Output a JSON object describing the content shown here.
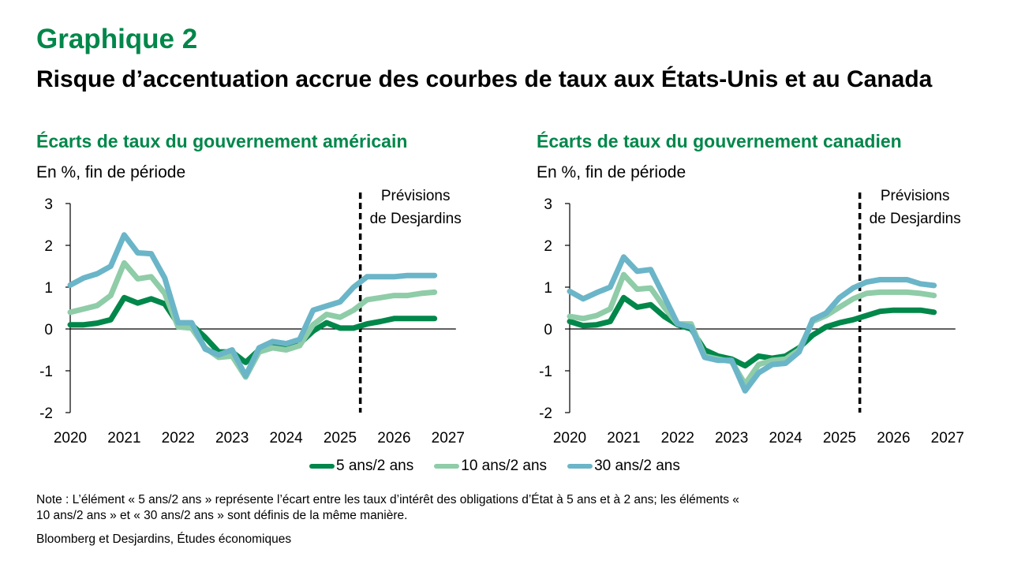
{
  "header": {
    "graph_label": "Graphique 2",
    "title": "Risque d’accentuation accrue des courbes de taux aux États-Unis et au Canada"
  },
  "legend": [
    {
      "label": "5 ans/2 ans",
      "color": "#00874A"
    },
    {
      "label": "10 ans/2 ans",
      "color": "#8FCCA8"
    },
    {
      "label": "30 ans/2 ans",
      "color": "#6BB5C8"
    }
  ],
  "footer": {
    "note": "Note : L’élément « 5 ans/2 ans » représente l’écart entre les taux d’intérêt des obligations d’État à 5 ans et à 2 ans; les éléments « 10 ans/2 ans » et « 30 ans/2 ans » sont définis de la même manière.",
    "source": "Bloomberg et Desjardins, Études économiques"
  },
  "chart_data": [
    {
      "type": "line",
      "title": "Écarts de taux du gouvernement américain",
      "ylabel": "En %, fin de période",
      "xlabel": "",
      "ylim": [
        -2,
        3
      ],
      "yticks": [
        "3",
        "2",
        "1",
        "0",
        "-1",
        "-2"
      ],
      "ytick_values": [
        3,
        2,
        1,
        0,
        -1,
        -2
      ],
      "xticks": [
        "2020",
        "2021",
        "2022",
        "2023",
        "2024",
        "2025",
        "2026",
        "2027"
      ],
      "xlim": [
        2020,
        2027
      ],
      "frequency": "quarterly",
      "x_start": 2020,
      "forecast_start": 2025.375,
      "forecast_label": [
        "Prévisions",
        "de Desjardins"
      ],
      "grid": false,
      "legend_position": "bottom",
      "series": [
        {
          "name": "5 ans/2 ans",
          "color": "#00874A",
          "values": [
            0.1,
            0.1,
            0.14,
            0.22,
            0.75,
            0.62,
            0.72,
            0.6,
            0.12,
            0.1,
            -0.2,
            -0.55,
            -0.55,
            -0.8,
            -0.5,
            -0.38,
            -0.4,
            -0.35,
            -0.05,
            0.15,
            0.02,
            0.02,
            0.12,
            0.18,
            0.25,
            0.25,
            0.25,
            0.25
          ]
        },
        {
          "name": "10 ans/2 ans",
          "color": "#8FCCA8",
          "values": [
            0.4,
            0.48,
            0.56,
            0.8,
            1.58,
            1.2,
            1.25,
            0.85,
            0.05,
            0.02,
            -0.45,
            -0.68,
            -0.65,
            -1.15,
            -0.55,
            -0.45,
            -0.5,
            -0.4,
            0.1,
            0.35,
            0.28,
            0.45,
            0.7,
            0.75,
            0.8,
            0.8,
            0.85,
            0.88
          ]
        },
        {
          "name": "30 ans/2 ans",
          "color": "#6BB5C8",
          "values": [
            1.05,
            1.22,
            1.32,
            1.5,
            2.25,
            1.82,
            1.8,
            1.22,
            0.15,
            0.15,
            -0.48,
            -0.62,
            -0.5,
            -1.12,
            -0.45,
            -0.3,
            -0.35,
            -0.25,
            0.45,
            0.55,
            0.65,
            1.0,
            1.25,
            1.25,
            1.25,
            1.28,
            1.28,
            1.28
          ]
        }
      ]
    },
    {
      "type": "line",
      "title": "Écarts de taux du gouvernement canadien",
      "ylabel": "En %, fin de période",
      "xlabel": "",
      "ylim": [
        -2,
        3
      ],
      "yticks": [
        "3",
        "2",
        "1",
        "0",
        "-1",
        "-2"
      ],
      "ytick_values": [
        3,
        2,
        1,
        0,
        -1,
        -2
      ],
      "xticks": [
        "2020",
        "2021",
        "2022",
        "2023",
        "2024",
        "2025",
        "2026",
        "2027"
      ],
      "xlim": [
        2020,
        2027
      ],
      "frequency": "quarterly",
      "x_start": 2020,
      "forecast_start": 2025.375,
      "forecast_label": [
        "Prévisions",
        "de Desjardins"
      ],
      "grid": false,
      "legend_position": "bottom",
      "series": [
        {
          "name": "5 ans/2 ans",
          "color": "#00874A",
          "values": [
            0.18,
            0.08,
            0.1,
            0.18,
            0.75,
            0.52,
            0.58,
            0.3,
            0.1,
            0.0,
            -0.5,
            -0.65,
            -0.72,
            -0.88,
            -0.65,
            -0.7,
            -0.65,
            -0.45,
            -0.15,
            0.05,
            0.15,
            0.22,
            0.32,
            0.42,
            0.45,
            0.45,
            0.45,
            0.4
          ]
        },
        {
          "name": "10 ans/2 ans",
          "color": "#8FCCA8",
          "values": [
            0.3,
            0.25,
            0.32,
            0.48,
            1.3,
            0.95,
            0.98,
            0.52,
            0.12,
            0.12,
            -0.65,
            -0.72,
            -0.78,
            -1.32,
            -0.85,
            -0.75,
            -0.72,
            -0.5,
            0.18,
            0.32,
            0.52,
            0.72,
            0.85,
            0.88,
            0.88,
            0.88,
            0.85,
            0.8
          ]
        },
        {
          "name": "30 ans/2 ans",
          "color": "#6BB5C8",
          "values": [
            0.9,
            0.72,
            0.87,
            1.0,
            1.72,
            1.38,
            1.42,
            0.78,
            0.12,
            0.05,
            -0.68,
            -0.75,
            -0.75,
            -1.48,
            -1.05,
            -0.85,
            -0.82,
            -0.55,
            0.22,
            0.38,
            0.75,
            0.98,
            1.12,
            1.18,
            1.18,
            1.18,
            1.08,
            1.04
          ]
        }
      ]
    }
  ]
}
